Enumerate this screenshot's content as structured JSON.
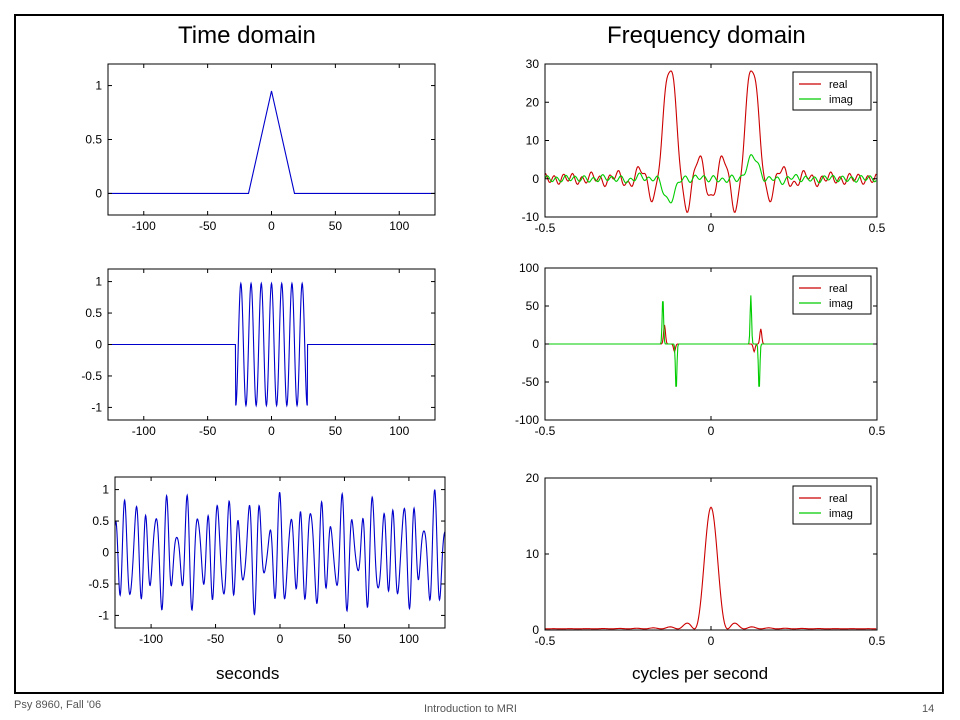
{
  "slide": {
    "left_title": "Time domain",
    "right_title": "Frequency domain",
    "left_xlabel": "seconds",
    "right_xlabel": "cycles per second",
    "footer_left": "Psy 8960, Fall '06",
    "footer_center": "Introduction to MRI",
    "page_number": "14"
  },
  "colors": {
    "time_signal": "#0000cc",
    "real": "#cc0000",
    "imag": "#00cc00"
  },
  "chart_data": [
    {
      "type": "line",
      "panel": "time-1",
      "xlim": [
        -128,
        128
      ],
      "ylim": [
        -0.2,
        1.2
      ],
      "xticks": [
        -100,
        -50,
        0,
        50,
        100
      ],
      "xtick_labels": [
        "-100",
        "-50",
        "0",
        "50",
        "100"
      ],
      "yticks": [
        0,
        0.5,
        1
      ],
      "ytick_labels": [
        "0",
        "0.5",
        "1"
      ],
      "series": [
        {
          "signal": "triangle",
          "center": 0,
          "half_width": 18,
          "peak": 0.95,
          "x": [
            -128,
            -18,
            0,
            18,
            128
          ],
          "y": [
            0,
            0,
            0.95,
            0,
            0
          ]
        }
      ]
    },
    {
      "type": "line",
      "panel": "time-2",
      "xlim": [
        -128,
        128
      ],
      "ylim": [
        -1.2,
        1.2
      ],
      "xticks": [
        -100,
        -50,
        0,
        50,
        100
      ],
      "xtick_labels": [
        "-100",
        "-50",
        "0",
        "50",
        "100"
      ],
      "yticks": [
        -1,
        -0.5,
        0,
        0.5,
        1
      ],
      "ytick_labels": [
        "-1",
        "-0.5",
        "0",
        "0.5",
        "1"
      ],
      "series": [
        {
          "signal": "windowed cosine",
          "window": [
            -28,
            28
          ],
          "amplitude": 0.97,
          "frequency": 0.125
        }
      ]
    },
    {
      "type": "line",
      "panel": "time-3",
      "xlim": [
        -128,
        128
      ],
      "ylim": [
        -1.2,
        1.2
      ],
      "xticks": [
        -100,
        -50,
        0,
        50,
        100
      ],
      "xtick_labels": [
        "-100",
        "-50",
        "0",
        "50",
        "100"
      ],
      "yticks": [
        -1,
        -0.5,
        0,
        0.5,
        1
      ],
      "ytick_labels": [
        "-1",
        "-0.5",
        "0",
        "0.5",
        "1"
      ],
      "series": [
        {
          "signal": "cosine times sinc",
          "components": [
            {
              "kind": "cosine",
              "frequency": 0.125
            },
            {
              "kind": "sinc",
              "frequency": 0.0125
            }
          ],
          "peak": 1.0
        }
      ]
    },
    {
      "type": "line",
      "panel": "freq-1",
      "xlim": [
        -0.5,
        0.5
      ],
      "ylim": [
        -10,
        30
      ],
      "xticks": [
        -0.5,
        0,
        0.5
      ],
      "xtick_labels": [
        "-0.5",
        "0",
        "0.5"
      ],
      "yticks": [
        -10,
        0,
        10,
        20,
        30
      ],
      "ytick_labels": [
        "-10",
        "0",
        "10",
        "20",
        "30"
      ],
      "legend": {
        "position": "top-right",
        "entries": [
          "real",
          "imag"
        ]
      },
      "series": [
        {
          "name": "real",
          "shape": "two sinc^2-like peaks",
          "peak_x": [
            -0.125,
            0.125
          ],
          "peak_y": 29,
          "sidelobe_amplitude": 2
        },
        {
          "name": "imag",
          "shape": "small antisymmetric lobes",
          "peak_x": [
            -0.125,
            0.125
          ],
          "amplitude": 6
        }
      ]
    },
    {
      "type": "line",
      "panel": "freq-2",
      "xlim": [
        -0.5,
        0.5
      ],
      "ylim": [
        -100,
        100
      ],
      "xticks": [
        -0.5,
        0,
        0.5
      ],
      "xtick_labels": [
        "-0.5",
        "0",
        "0.5"
      ],
      "yticks": [
        -100,
        -50,
        0,
        50,
        100
      ],
      "ytick_labels": [
        "-100",
        "-50",
        "0",
        "50",
        "100"
      ],
      "legend": {
        "position": "top-right",
        "entries": [
          "real",
          "imag"
        ]
      },
      "series": [
        {
          "name": "real",
          "points": [
            {
              "x": -0.14,
              "y": 25
            },
            {
              "x": -0.11,
              "y": -10
            },
            {
              "x": 0.13,
              "y": -10
            },
            {
              "x": 0.15,
              "y": 20
            }
          ]
        },
        {
          "name": "imag",
          "points": [
            {
              "x": -0.145,
              "y": 62
            },
            {
              "x": -0.105,
              "y": -62
            },
            {
              "x": 0.12,
              "y": 64
            },
            {
              "x": 0.145,
              "y": -62
            }
          ]
        }
      ]
    },
    {
      "type": "line",
      "panel": "freq-3",
      "xlim": [
        -0.5,
        0.5
      ],
      "ylim": [
        0,
        20
      ],
      "xticks": [
        -0.5,
        0,
        0.5
      ],
      "xtick_labels": [
        "-0.5",
        "0",
        "0.5"
      ],
      "yticks": [
        0,
        10,
        20
      ],
      "ytick_labels": [
        "0",
        "10",
        "20"
      ],
      "legend": {
        "position": "top-right",
        "entries": [
          "real",
          "imag"
        ]
      },
      "series": [
        {
          "name": "real",
          "shape": "single sinc^2-like peak",
          "peak_x": 0,
          "peak_y": 16,
          "main_lobe_half_width": 0.05
        },
        {
          "name": "imag",
          "constant": 0
        }
      ]
    }
  ]
}
